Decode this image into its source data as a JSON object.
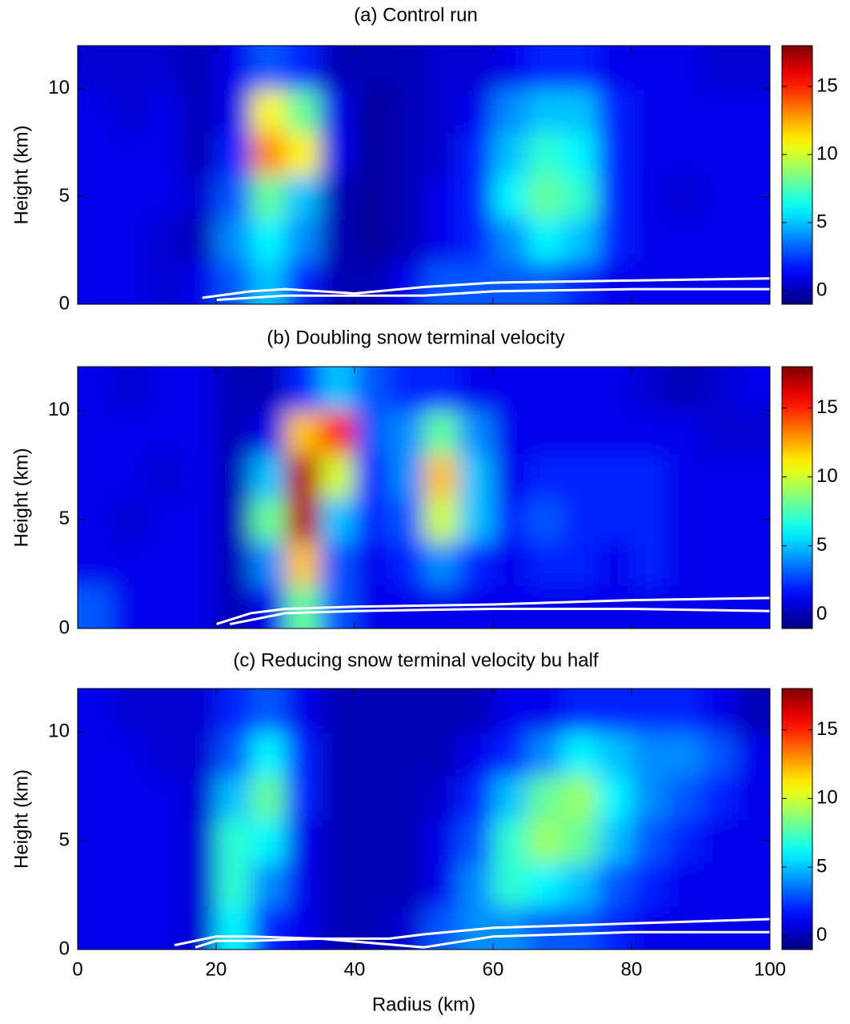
{
  "chart_data": [
    {
      "type": "heatmap",
      "title": "(a) Control run",
      "ylabel": "Height (km)",
      "colormap": "jet",
      "xlim": [
        0,
        100
      ],
      "xticks": [
        0,
        20,
        40,
        60,
        80,
        100
      ],
      "show_xtick_labels": false,
      "ylim": [
        0,
        12
      ],
      "yticks": [
        0,
        5,
        10
      ],
      "clim": [
        -1,
        18
      ],
      "cticks": [
        0,
        5,
        10,
        15
      ],
      "z_x": [
        2.5,
        7.5,
        12.5,
        17.5,
        22.5,
        27.5,
        32.5,
        37.5,
        42.5,
        47.5,
        52.5,
        57.5,
        62.5,
        67.5,
        72.5,
        77.5,
        82.5,
        87.5,
        92.5,
        97.5
      ],
      "z_y": [
        1,
        3,
        5,
        7,
        9,
        11
      ],
      "z": [
        [
          1,
          1,
          0.5,
          1,
          3,
          5,
          2,
          0,
          0,
          1,
          3,
          3,
          3,
          3,
          2,
          1,
          1,
          1,
          1,
          1
        ],
        [
          1,
          1,
          0.5,
          0,
          4,
          6,
          4,
          0,
          -0.5,
          0,
          1,
          2,
          4,
          6,
          5,
          2,
          1,
          1,
          1,
          1
        ],
        [
          1,
          1,
          1,
          0.5,
          3,
          8,
          5,
          0,
          -0.5,
          0,
          1,
          2,
          6,
          8,
          7,
          2,
          1,
          0.5,
          1,
          1
        ],
        [
          1,
          1,
          1,
          0,
          2,
          13,
          11,
          1,
          -0.5,
          0,
          0.5,
          2,
          5,
          7,
          6,
          2,
          1,
          1,
          1,
          1
        ],
        [
          1,
          0.5,
          1,
          0,
          1,
          11,
          8,
          1,
          -0.5,
          0,
          0.5,
          1,
          4,
          5,
          5,
          2,
          1,
          1,
          1,
          1
        ],
        [
          0.5,
          0.5,
          0.5,
          0,
          1,
          3,
          2,
          0,
          0,
          0,
          0.5,
          0.5,
          1,
          2,
          2,
          1,
          1,
          1,
          0.5,
          0.5
        ]
      ],
      "contour_lines": [
        {
          "x": [
            18,
            25,
            30,
            40,
            50,
            60,
            80,
            100
          ],
          "y": [
            0.3,
            0.6,
            0.7,
            0.5,
            0.8,
            1.0,
            1.1,
            1.2
          ]
        },
        {
          "x": [
            20,
            30,
            40,
            50,
            60,
            80,
            100
          ],
          "y": [
            0.2,
            0.4,
            0.4,
            0.4,
            0.6,
            0.7,
            0.7
          ]
        }
      ]
    },
    {
      "type": "heatmap",
      "title": "(b) Doubling snow terminal velocity",
      "ylabel": "Height (km)",
      "colormap": "jet",
      "xlim": [
        0,
        100
      ],
      "xticks": [
        0,
        20,
        40,
        60,
        80,
        100
      ],
      "show_xtick_labels": false,
      "ylim": [
        0,
        12
      ],
      "yticks": [
        0,
        5,
        10
      ],
      "clim": [
        -1,
        18
      ],
      "cticks": [
        0,
        5,
        10,
        15
      ],
      "z_x": [
        2.5,
        7.5,
        12.5,
        17.5,
        22.5,
        27.5,
        32.5,
        37.5,
        42.5,
        47.5,
        52.5,
        57.5,
        62.5,
        67.5,
        72.5,
        77.5,
        82.5,
        87.5,
        92.5,
        97.5
      ],
      "z_y": [
        1,
        3,
        5,
        7,
        9,
        11
      ],
      "z": [
        [
          3,
          1,
          1,
          1,
          0,
          1,
          8,
          3,
          1,
          1,
          1,
          1,
          1,
          1,
          1,
          1,
          1,
          1,
          1,
          1
        ],
        [
          1,
          1,
          1,
          1,
          0,
          4,
          12,
          3,
          1,
          2,
          4,
          2,
          1,
          2,
          2,
          1,
          2,
          1,
          1,
          1
        ],
        [
          1,
          0.5,
          1,
          1,
          0,
          8,
          17,
          5,
          2,
          3,
          10,
          5,
          2,
          3,
          2,
          2,
          2,
          1,
          1,
          1
        ],
        [
          1,
          1,
          0.5,
          1,
          0,
          5,
          17,
          10,
          2,
          4,
          12,
          5,
          1,
          2,
          2,
          2,
          2,
          1,
          1,
          1
        ],
        [
          1,
          1,
          1,
          1,
          0,
          1,
          12,
          15,
          3,
          4,
          8,
          4,
          1,
          1,
          1,
          1,
          1,
          1,
          0.5,
          0.5
        ],
        [
          1,
          0.5,
          1,
          1,
          0,
          0,
          2,
          5,
          3,
          2,
          2,
          1,
          1,
          1,
          1,
          1,
          0.5,
          0,
          0.5,
          1
        ]
      ],
      "contour_lines": [
        {
          "x": [
            20,
            25,
            30,
            40,
            60,
            80,
            100
          ],
          "y": [
            0.2,
            0.7,
            0.9,
            1.0,
            1.1,
            1.3,
            1.4
          ]
        },
        {
          "x": [
            22,
            30,
            40,
            60,
            80,
            100
          ],
          "y": [
            0.2,
            0.7,
            0.8,
            0.9,
            0.9,
            0.8
          ]
        }
      ]
    },
    {
      "type": "heatmap",
      "title": "(c) Reducing snow terminal velocity bu half",
      "ylabel": "Height (km)",
      "xlabel": "Radius (km)",
      "colormap": "jet",
      "xlim": [
        0,
        100
      ],
      "xticks": [
        0,
        20,
        40,
        60,
        80,
        100
      ],
      "show_xtick_labels": true,
      "ylim": [
        0,
        12
      ],
      "yticks": [
        0,
        5,
        10
      ],
      "clim": [
        -1,
        18
      ],
      "cticks": [
        0,
        5,
        10,
        15
      ],
      "z_x": [
        2.5,
        7.5,
        12.5,
        17.5,
        22.5,
        27.5,
        32.5,
        37.5,
        42.5,
        47.5,
        52.5,
        57.5,
        62.5,
        67.5,
        72.5,
        77.5,
        82.5,
        87.5,
        92.5,
        97.5
      ],
      "z_y": [
        1,
        3,
        5,
        7,
        9,
        11
      ],
      "z": [
        [
          1,
          1,
          1,
          0.5,
          6,
          2,
          1,
          0,
          0,
          0.5,
          3,
          4,
          4,
          3,
          3,
          2,
          1,
          1,
          1,
          1
        ],
        [
          1,
          1,
          1,
          0.5,
          7,
          4,
          1,
          0,
          0,
          0,
          1,
          4,
          7,
          6,
          5,
          3,
          2,
          1,
          1,
          1
        ],
        [
          1,
          1,
          1,
          0.5,
          7,
          6,
          1,
          0,
          0,
          0,
          1,
          3,
          7,
          9,
          8,
          5,
          3,
          2,
          1,
          1
        ],
        [
          1,
          1,
          1,
          0.5,
          5,
          8,
          2,
          0,
          0,
          0,
          0.5,
          2,
          5,
          8,
          9,
          6,
          4,
          3,
          2,
          1
        ],
        [
          1,
          1,
          0.5,
          0.5,
          3,
          6,
          2,
          0,
          0,
          0,
          0,
          1,
          2,
          4,
          6,
          5,
          4,
          4,
          3,
          1
        ],
        [
          1,
          0.5,
          0.5,
          0.5,
          2,
          3,
          1,
          0,
          0,
          0,
          0,
          0,
          1,
          1,
          2,
          2,
          2,
          2,
          1,
          0
        ]
      ],
      "contour_lines": [
        {
          "x": [
            14,
            20,
            25,
            35,
            45,
            50,
            60,
            80,
            100
          ],
          "y": [
            0.2,
            0.6,
            0.6,
            0.5,
            0.5,
            0.7,
            1.0,
            1.2,
            1.4
          ]
        },
        {
          "x": [
            17,
            20,
            25,
            35,
            50,
            60,
            80,
            100
          ],
          "y": [
            0.1,
            0.4,
            0.4,
            0.5,
            0.1,
            0.6,
            0.8,
            0.8
          ]
        }
      ]
    }
  ]
}
